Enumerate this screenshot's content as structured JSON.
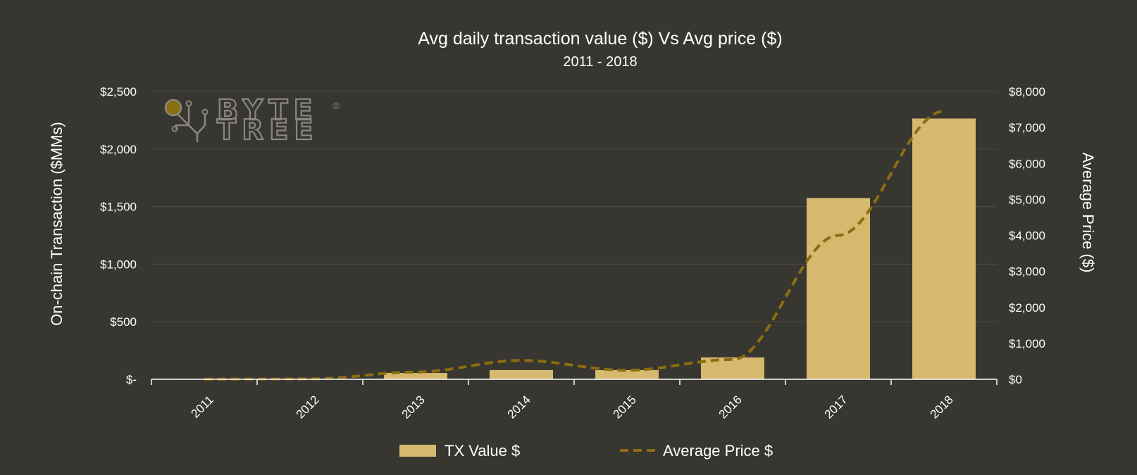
{
  "chart_data": {
    "type": "bar",
    "title": "Avg daily transaction value ($) Vs Avg price ($)",
    "subtitle": "2011 - 2018",
    "categories": [
      "2011",
      "2012",
      "2013",
      "2014",
      "2015",
      "2016",
      "2017",
      "2018"
    ],
    "series": [
      {
        "name": "TX Value $",
        "type": "bar",
        "axis": "left",
        "color": "#d4b96e",
        "values": [
          5,
          5,
          55,
          80,
          80,
          190,
          1575,
          2265
        ]
      },
      {
        "name": "Average Price $",
        "type": "line",
        "style": "dashed",
        "axis": "right",
        "color": "#8c6d10",
        "values": [
          5,
          10,
          200,
          525,
          250,
          550,
          4000,
          7450
        ]
      }
    ],
    "ylabel": "On-chain Transaction ($MMs)",
    "y2label": "Average Price ($)",
    "ylim": [
      0,
      2500
    ],
    "y2lim": [
      0,
      8000
    ],
    "yticks": [
      0,
      500,
      1000,
      1500,
      2000,
      2500
    ],
    "ytick_labels": [
      "$-",
      "$500",
      "$1,000",
      "$1,500",
      "$2,000",
      "$2,500"
    ],
    "y2ticks": [
      0,
      1000,
      2000,
      3000,
      4000,
      5000,
      6000,
      7000,
      8000
    ],
    "y2tick_labels": [
      "$0",
      "$1,000",
      "$2,000",
      "$3,000",
      "$4,000",
      "$5,000",
      "$6,000",
      "$7,000",
      "$8,000"
    ],
    "grid": true,
    "legend_position": "bottom"
  },
  "logo": {
    "line1": "BYTE",
    "line2": "TREE",
    "mark": "®",
    "icon": "circuit-node-icon",
    "color": "#8a8780",
    "accent": "#8c6d10"
  },
  "colors": {
    "background": "#383631",
    "gridline": "#4a4843",
    "axis": "#ffffff"
  }
}
